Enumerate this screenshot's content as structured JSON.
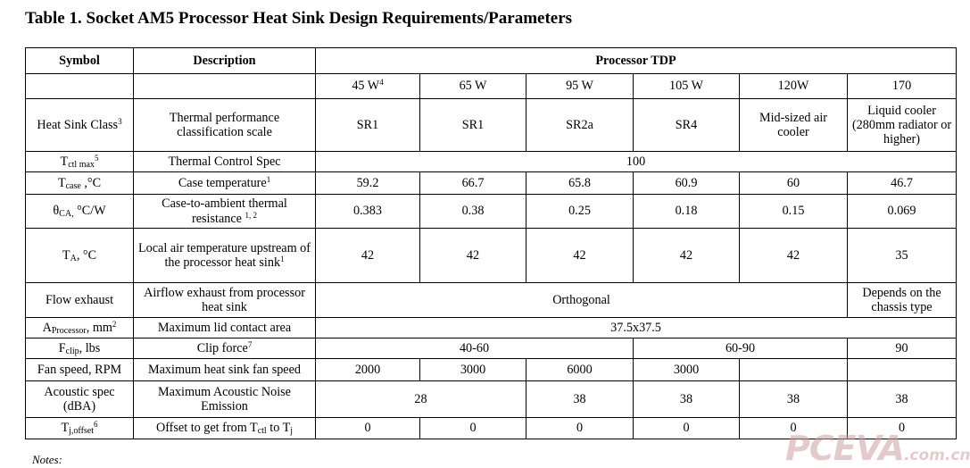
{
  "title": "Table 1. Socket AM5 Processor Heat Sink Design Requirements/Parameters",
  "headers": {
    "symbol": "Symbol",
    "description": "Description",
    "tdp": "Processor TDP"
  },
  "tdp_values": [
    {
      "value": "45 W",
      "sup": "4"
    },
    {
      "value": "65 W"
    },
    {
      "value": "95 W"
    },
    {
      "value": "105 W"
    },
    {
      "value": "120W"
    },
    {
      "value": "170"
    }
  ],
  "rows": {
    "heatsink": {
      "symbol": "Heat Sink Class",
      "symbol_sup": "3",
      "desc": "Thermal performance classification scale",
      "values": [
        "SR1",
        "SR1",
        "SR2a",
        "SR4",
        "Mid-sized air cooler",
        "Liquid cooler (280mm radiator or higher)"
      ]
    },
    "tctl": {
      "symbol_main": "T",
      "symbol_sub": "ctl max",
      "symbol_sup": "5",
      "desc": "Thermal Control Spec",
      "value": "100"
    },
    "tcase": {
      "symbol_main": "T",
      "symbol_sub": "case",
      "symbol_tail": " ,°C",
      "desc": "Case temperature",
      "desc_sup": "1",
      "values": [
        "59.2",
        "66.7",
        "65.8",
        "60.9",
        "60",
        "46.7"
      ]
    },
    "theta": {
      "symbol_main": "θ",
      "symbol_sub": "CA,",
      "symbol_tail": " °C/W",
      "desc": "Case-to-ambient thermal resistance",
      "desc_sup": "1, 2",
      "values": [
        "0.383",
        "0.38",
        "0.25",
        "0.18",
        "0.15",
        "0.069"
      ]
    },
    "ta": {
      "symbol_main": "T",
      "symbol_sub": "A",
      "symbol_tail": ", °C",
      "desc": "Local air temperature upstream of the processor heat sink",
      "desc_sup": "1",
      "values": [
        "42",
        "42",
        "42",
        "42",
        "42",
        "35"
      ]
    },
    "flow": {
      "symbol": "Flow exhaust",
      "desc": "Airflow exhaust from processor heat sink",
      "value_main": "Orthogonal",
      "value_last": "Depends on the chassis type"
    },
    "aproc": {
      "symbol_main": "A",
      "symbol_sub": "Processor",
      "symbol_tail": ", mm",
      "symbol_sup": "2",
      "desc": "Maximum lid contact area",
      "value": "37.5x37.5"
    },
    "fclip": {
      "symbol_main": "F",
      "symbol_sub": "clip",
      "symbol_tail": ", lbs",
      "desc": "Clip force",
      "desc_sup": "7",
      "values": [
        "40-60",
        "60-90",
        "90"
      ]
    },
    "fan": {
      "symbol": "Fan speed, RPM",
      "desc": "Maximum heat sink fan speed",
      "values": [
        "2000",
        "3000",
        "6000",
        "3000",
        "",
        ""
      ]
    },
    "acoustic": {
      "symbol": "Acoustic spec (dBA)",
      "desc": "Maximum Acoustic Noise Emission",
      "values": [
        "28",
        "38",
        "38",
        "38",
        "38"
      ]
    },
    "tj": {
      "symbol_main": "T",
      "symbol_sub": "j,offset",
      "symbol_sup": "6",
      "desc_pre": "Offset to get from T",
      "desc_sub1": "ctl",
      "desc_mid": " to T",
      "desc_sub2": "j",
      "values": [
        "0",
        "0",
        "0",
        "0",
        "0",
        "0"
      ]
    }
  },
  "notes": "Notes:",
  "watermark": {
    "brand": "PCEVA",
    "domain": ".com.cn"
  }
}
